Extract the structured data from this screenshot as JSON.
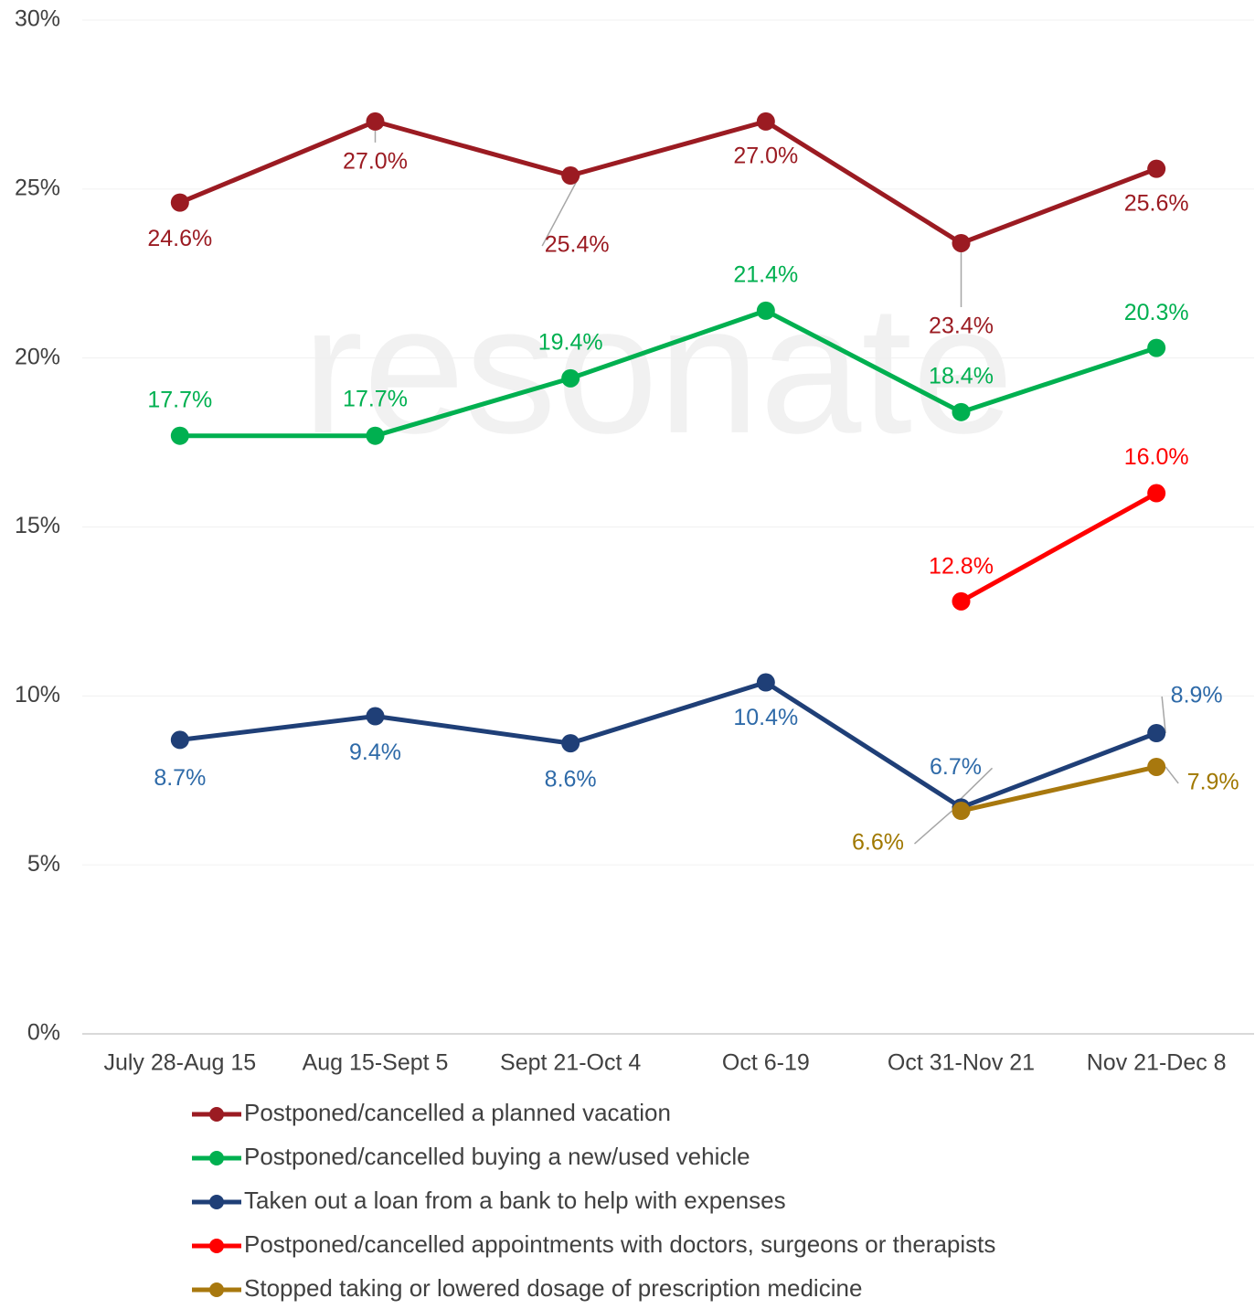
{
  "chart_data": {
    "type": "line",
    "watermark": "resonate",
    "categories": [
      "July 28-Aug 15",
      "Aug 15-Sept 5",
      "Sept 21-Oct 4",
      "Oct 6-19",
      "Oct 31-Nov 21",
      "Nov 21-Dec 8"
    ],
    "ylim": [
      0,
      30
    ],
    "yticks": [
      {
        "value": 0,
        "label": "0%"
      },
      {
        "value": 5,
        "label": "5%"
      },
      {
        "value": 10,
        "label": "10%"
      },
      {
        "value": 15,
        "label": "15%"
      },
      {
        "value": 20,
        "label": "20%"
      },
      {
        "value": 25,
        "label": "25%"
      },
      {
        "value": 30,
        "label": "30%"
      }
    ],
    "grid": true,
    "legend": "bottom",
    "series": [
      {
        "name": "Postponed/cancelled a planned vacation",
        "color": "#9b1b22",
        "values": [
          24.6,
          27,
          25.4,
          27,
          23.4,
          25.6
        ],
        "value_labels": [
          "24.6%",
          "27.0%",
          "25.4%",
          "27.0%",
          "23.4%",
          "25.6%"
        ]
      },
      {
        "name": "Postponed/cancelled buying a new/used vehicle",
        "color": "#00b050",
        "values": [
          17.7,
          17.7,
          19.4,
          21.4,
          18.4,
          20.3
        ],
        "value_labels": [
          "17.7%",
          "17.7%",
          "19.4%",
          "21.4%",
          "18.4%",
          "20.3%"
        ]
      },
      {
        "name": "Taken out a loan from a bank to help with expenses",
        "color": "#1f3f77",
        "values": [
          8.7,
          9.4,
          8.6,
          10.4,
          6.7,
          8.9
        ],
        "value_labels": [
          "8.7%",
          "9.4%",
          "8.6%",
          "10.4%",
          "6.7%",
          "8.9%"
        ]
      },
      {
        "name": "Postponed/cancelled appointments with doctors, surgeons or therapists",
        "color": "#ff0000",
        "values": [
          null,
          null,
          null,
          null,
          12.8,
          16
        ],
        "value_labels": [
          null,
          null,
          null,
          null,
          "12.8%",
          "16.0%"
        ]
      },
      {
        "name": "Stopped taking or lowered dosage of prescription medicine",
        "color": "#a8780e",
        "values": [
          null,
          null,
          null,
          null,
          6.6,
          7.9
        ],
        "value_labels": [
          null,
          null,
          null,
          null,
          "6.6%",
          "7.9%"
        ]
      }
    ]
  }
}
